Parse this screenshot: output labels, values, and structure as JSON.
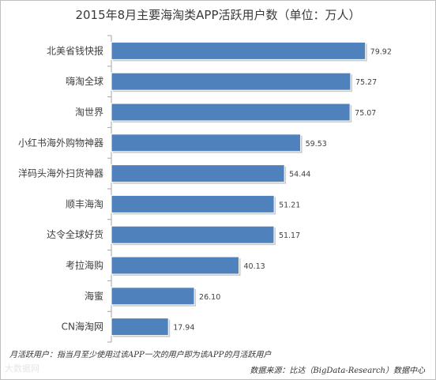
{
  "chart_data": {
    "type": "bar",
    "orientation": "horizontal",
    "title": "2015年8月主要海淘类APP活跃用户数（单位：万人）",
    "categories": [
      "北美省钱快报",
      "嗨淘全球",
      "淘世界",
      "小红书海外购物神器",
      "洋码头海外扫货神器",
      "顺丰海淘",
      "达令全球好货",
      "考拉海购",
      "海蜜",
      "CN海淘网"
    ],
    "values": [
      79.92,
      75.27,
      75.07,
      59.53,
      54.44,
      51.21,
      51.17,
      40.13,
      26.1,
      17.94
    ],
    "value_labels": [
      "79.92",
      "75.27",
      "75.07",
      "59.53",
      "54.44",
      "51.21",
      "51.17",
      "40.13",
      "26.10",
      "17.94"
    ],
    "xlim": [
      0,
      85
    ],
    "grid": false,
    "legend": "none",
    "bar_color": "#4f81bd",
    "axis_color": "#a6a6a6"
  },
  "footnote": "月活跃用户：指当月至少使用过该APP一次的用户即为该APP的月活跃用户",
  "source": "数据来源：比达（BigData-Research）数据中心",
  "watermark": "大数据网"
}
